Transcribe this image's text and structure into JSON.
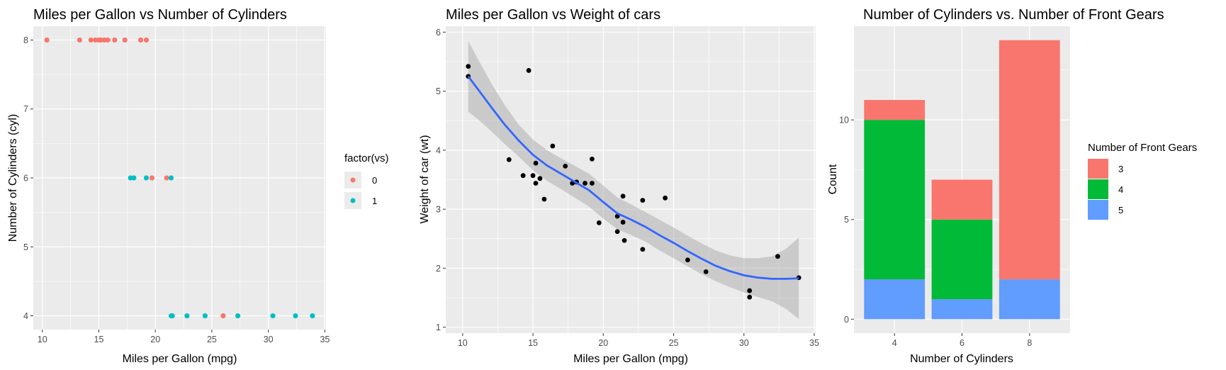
{
  "chart_data": [
    {
      "type": "scatter",
      "title": "Miles per Gallon vs Number of Cylinders",
      "xlabel": "Miles per Gallon (mpg)",
      "ylabel": "Number of Cylinders (cyl)",
      "xlim": [
        10,
        35
      ],
      "ylim": [
        4,
        8
      ],
      "x_ticks": [
        "10",
        "15",
        "20",
        "25",
        "30",
        "35"
      ],
      "y_ticks": [
        "4",
        "5",
        "6",
        "7",
        "8"
      ],
      "grid": true,
      "legend": {
        "title": "factor(vs)",
        "placement": "right",
        "entries": [
          "0",
          "1"
        ]
      },
      "colors": {
        "0": "#F8766D",
        "1": "#00BFC4"
      },
      "series": [
        {
          "name": "0",
          "points": [
            [
              10.4,
              8
            ],
            [
              13.3,
              8
            ],
            [
              14.3,
              8
            ],
            [
              14.7,
              8
            ],
            [
              15.0,
              8
            ],
            [
              15.2,
              8
            ],
            [
              15.5,
              8
            ],
            [
              15.8,
              8
            ],
            [
              16.4,
              8
            ],
            [
              17.3,
              8
            ],
            [
              18.7,
              8
            ],
            [
              19.2,
              8
            ],
            [
              19.7,
              6
            ],
            [
              21.0,
              6
            ],
            [
              26.0,
              4
            ]
          ]
        },
        {
          "name": "1",
          "points": [
            [
              17.8,
              6
            ],
            [
              18.1,
              6
            ],
            [
              19.2,
              6
            ],
            [
              21.4,
              6
            ],
            [
              21.4,
              4
            ],
            [
              21.5,
              4
            ],
            [
              22.8,
              4
            ],
            [
              24.4,
              4
            ],
            [
              27.3,
              4
            ],
            [
              30.4,
              4
            ],
            [
              32.4,
              4
            ],
            [
              33.9,
              4
            ]
          ]
        }
      ]
    },
    {
      "type": "scatter",
      "title": "Miles per Gallon vs Weight of cars",
      "xlabel": "Miles per Gallon (mpg)",
      "ylabel": "Weight of car (wt)",
      "xlim": [
        10,
        35
      ],
      "ylim": [
        1,
        6
      ],
      "x_ticks": [
        "10",
        "15",
        "20",
        "25",
        "30",
        "35"
      ],
      "y_ticks": [
        "1",
        "2",
        "3",
        "4",
        "5",
        "6"
      ],
      "grid": true,
      "colors": {
        "points": "#000000",
        "smooth": "#3366FF",
        "band": "#999999"
      },
      "points": [
        [
          10.4,
          5.42
        ],
        [
          10.4,
          5.25
        ],
        [
          14.7,
          5.35
        ],
        [
          13.3,
          3.84
        ],
        [
          14.3,
          3.57
        ],
        [
          15.0,
          3.57
        ],
        [
          15.2,
          3.78
        ],
        [
          15.2,
          3.44
        ],
        [
          15.5,
          3.52
        ],
        [
          15.8,
          3.17
        ],
        [
          16.4,
          4.07
        ],
        [
          17.3,
          3.73
        ],
        [
          17.8,
          3.44
        ],
        [
          18.1,
          3.46
        ],
        [
          18.7,
          3.44
        ],
        [
          19.2,
          3.44
        ],
        [
          19.2,
          3.85
        ],
        [
          19.7,
          2.77
        ],
        [
          21.0,
          2.62
        ],
        [
          21.0,
          2.88
        ],
        [
          21.4,
          2.78
        ],
        [
          21.4,
          3.22
        ],
        [
          21.5,
          2.47
        ],
        [
          22.8,
          2.32
        ],
        [
          22.8,
          3.15
        ],
        [
          24.4,
          3.19
        ],
        [
          26.0,
          2.14
        ],
        [
          27.3,
          1.94
        ],
        [
          30.4,
          1.62
        ],
        [
          30.4,
          1.51
        ],
        [
          32.4,
          2.2
        ],
        [
          33.9,
          1.84
        ]
      ],
      "smooth": [
        [
          10.4,
          5.25
        ],
        [
          11,
          5.06
        ],
        [
          12,
          4.74
        ],
        [
          13,
          4.43
        ],
        [
          14,
          4.16
        ],
        [
          15,
          3.92
        ],
        [
          16,
          3.74
        ],
        [
          17,
          3.6
        ],
        [
          18,
          3.46
        ],
        [
          19,
          3.32
        ],
        [
          20,
          3.12
        ],
        [
          21,
          2.93
        ],
        [
          22,
          2.82
        ],
        [
          23,
          2.7
        ],
        [
          24,
          2.56
        ],
        [
          25,
          2.43
        ],
        [
          26,
          2.29
        ],
        [
          27,
          2.16
        ],
        [
          28,
          2.04
        ],
        [
          29,
          1.95
        ],
        [
          30,
          1.88
        ],
        [
          31,
          1.84
        ],
        [
          32,
          1.82
        ],
        [
          33,
          1.82
        ],
        [
          33.9,
          1.83
        ]
      ],
      "band_upper": [
        [
          10.4,
          5.85
        ],
        [
          11,
          5.58
        ],
        [
          12,
          5.15
        ],
        [
          13,
          4.76
        ],
        [
          14,
          4.43
        ],
        [
          15,
          4.18
        ],
        [
          16,
          4.0
        ],
        [
          17,
          3.86
        ],
        [
          18,
          3.73
        ],
        [
          19,
          3.6
        ],
        [
          20,
          3.4
        ],
        [
          21,
          3.2
        ],
        [
          22,
          3.08
        ],
        [
          23,
          2.95
        ],
        [
          24,
          2.82
        ],
        [
          25,
          2.69
        ],
        [
          26,
          2.55
        ],
        [
          27,
          2.42
        ],
        [
          28,
          2.3
        ],
        [
          29,
          2.22
        ],
        [
          30,
          2.17
        ],
        [
          31,
          2.17
        ],
        [
          32,
          2.2
        ],
        [
          33,
          2.33
        ],
        [
          33.9,
          2.52
        ]
      ],
      "band_lower": [
        [
          10.4,
          4.65
        ],
        [
          11,
          4.54
        ],
        [
          12,
          4.33
        ],
        [
          13,
          4.1
        ],
        [
          14,
          3.89
        ],
        [
          15,
          3.66
        ],
        [
          16,
          3.48
        ],
        [
          17,
          3.34
        ],
        [
          18,
          3.19
        ],
        [
          19,
          3.04
        ],
        [
          20,
          2.84
        ],
        [
          21,
          2.66
        ],
        [
          22,
          2.56
        ],
        [
          23,
          2.45
        ],
        [
          24,
          2.3
        ],
        [
          25,
          2.17
        ],
        [
          26,
          2.03
        ],
        [
          27,
          1.9
        ],
        [
          28,
          1.78
        ],
        [
          29,
          1.68
        ],
        [
          30,
          1.59
        ],
        [
          31,
          1.51
        ],
        [
          32,
          1.44
        ],
        [
          33,
          1.31
        ],
        [
          33.9,
          1.14
        ]
      ]
    },
    {
      "type": "bar",
      "stacked": true,
      "title": "Number of Cylinders vs. Number of Front Gears",
      "xlabel": "Number of Cylinders",
      "ylabel": "Count",
      "categories": [
        "4",
        "6",
        "8"
      ],
      "ylim": [
        0,
        14
      ],
      "y_ticks": [
        "0",
        "5",
        "10"
      ],
      "grid": true,
      "legend": {
        "title": "Number of Front Gears",
        "placement": "right",
        "entries": [
          "3",
          "4",
          "5"
        ]
      },
      "colors": {
        "3": "#F8766D",
        "4": "#00BA38",
        "5": "#619CFF"
      },
      "series": [
        {
          "name": "3",
          "values": [
            1,
            2,
            12
          ]
        },
        {
          "name": "4",
          "values": [
            8,
            4,
            0
          ]
        },
        {
          "name": "5",
          "values": [
            2,
            1,
            2
          ]
        }
      ]
    }
  ]
}
